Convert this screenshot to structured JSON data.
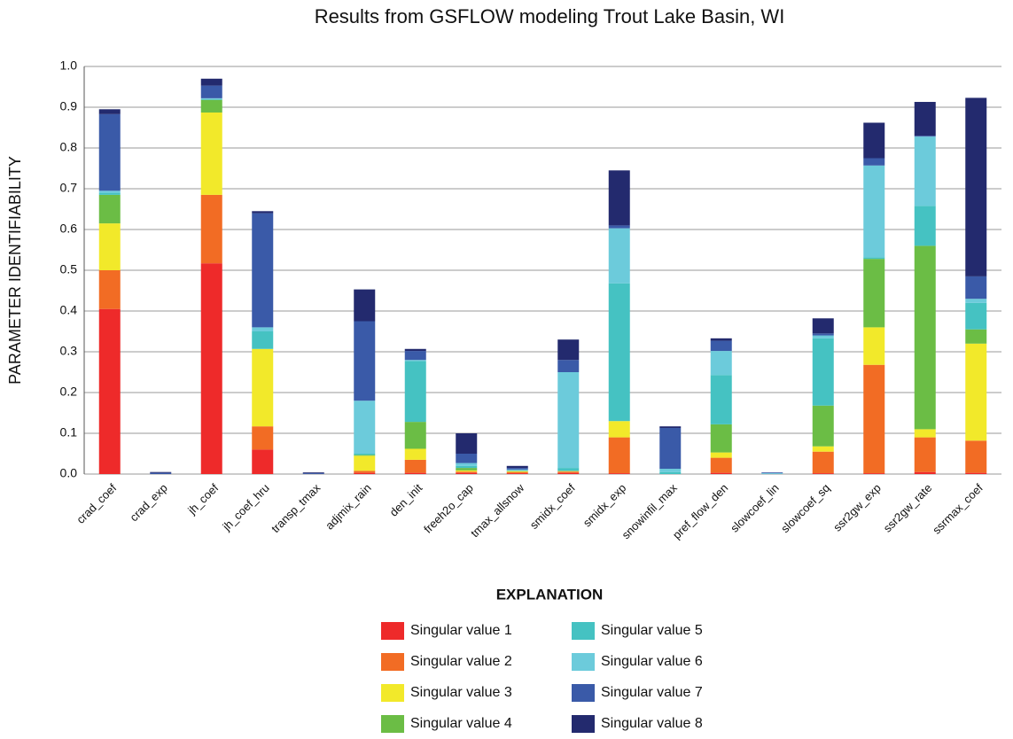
{
  "chart_data": {
    "type": "stacked_bar",
    "title": "Results from GSFLOW modeling Trout Lake Basin, WI",
    "y_label": "PARAMETER IDENTIFIABILITY",
    "legend_title": "EXPLANATION",
    "categories": [
      "crad_coef",
      "crad_exp",
      "jh_coef",
      "jh_coef_hru",
      "transp_tmax",
      "adjmix_rain",
      "den_init",
      "freeh2o_cap",
      "tmax_allsnow",
      "smidx_coef",
      "smidx_exp",
      "snowinfil_max",
      "pref_flow_den",
      "slowcoef_lin",
      "slowcoef_sq",
      "ssr2gw_exp",
      "ssr2gw_rate",
      "ssrmax_coef"
    ],
    "series": [
      {
        "name": "Singular value 1",
        "color": "#ee2a2a",
        "values": [
          0.405,
          0,
          0.517,
          0.06,
          0,
          0.003,
          0.003,
          0.003,
          0.002,
          0.003,
          0.002,
          0,
          0.003,
          0,
          0.002,
          0.002,
          0.005,
          0.003
        ]
      },
      {
        "name": "Singular value 2",
        "color": "#f26c24",
        "values": [
          0.095,
          0,
          0.168,
          0.057,
          0,
          0.005,
          0.032,
          0.003,
          0.003,
          0.003,
          0.088,
          0,
          0.037,
          0,
          0.053,
          0.266,
          0.085,
          0.079
        ]
      },
      {
        "name": "Singular value 3",
        "color": "#f2e92a",
        "values": [
          0.115,
          0,
          0.202,
          0.19,
          0,
          0.037,
          0.027,
          0.003,
          0.002,
          0.001,
          0.04,
          0,
          0.013,
          0,
          0.013,
          0.092,
          0.02,
          0.238
        ]
      },
      {
        "name": "Singular value 4",
        "color": "#6bbd45",
        "values": [
          0.07,
          0,
          0.031,
          0,
          0,
          0.002,
          0.066,
          0.006,
          0.001,
          0.001,
          0,
          0,
          0.069,
          0,
          0.1,
          0.168,
          0.45,
          0.035
        ]
      },
      {
        "name": "Singular value 5",
        "color": "#45c2c2",
        "values": [
          0.005,
          0,
          0.002,
          0.043,
          0,
          0.003,
          0.149,
          0.005,
          0.001,
          0.007,
          0.338,
          0.005,
          0.121,
          0,
          0.165,
          0.004,
          0.098,
          0.065
        ]
      },
      {
        "name": "Singular value 6",
        "color": "#6ccbdb",
        "values": [
          0.005,
          0,
          0.002,
          0.01,
          0,
          0.13,
          0.003,
          0.007,
          0.002,
          0.235,
          0.135,
          0.008,
          0.059,
          0.002,
          0.007,
          0.225,
          0.17,
          0.01
        ]
      },
      {
        "name": "Singular value 7",
        "color": "#3a5aa8",
        "values": [
          0.188,
          0.003,
          0.031,
          0.28,
          0.002,
          0.195,
          0.022,
          0.023,
          0.004,
          0.03,
          0.007,
          0.1,
          0.025,
          0.002,
          0.005,
          0.018,
          0.002,
          0.055
        ]
      },
      {
        "name": "Singular value 8",
        "color": "#232a6e",
        "values": [
          0.012,
          0.002,
          0.017,
          0.005,
          0.002,
          0.078,
          0.005,
          0.05,
          0.005,
          0.05,
          0.135,
          0.004,
          0.006,
          0,
          0.037,
          0.087,
          0.083,
          0.438
        ]
      }
    ],
    "ylim": [
      0,
      1
    ],
    "yticks": [
      {
        "value": 0,
        "label": "0.0"
      },
      0.1,
      0.2,
      0.3,
      0.4,
      0.5,
      0.6,
      0.7,
      0.8,
      0.9,
      {
        "value": 1,
        "label": "1.0"
      }
    ],
    "grid": true
  }
}
